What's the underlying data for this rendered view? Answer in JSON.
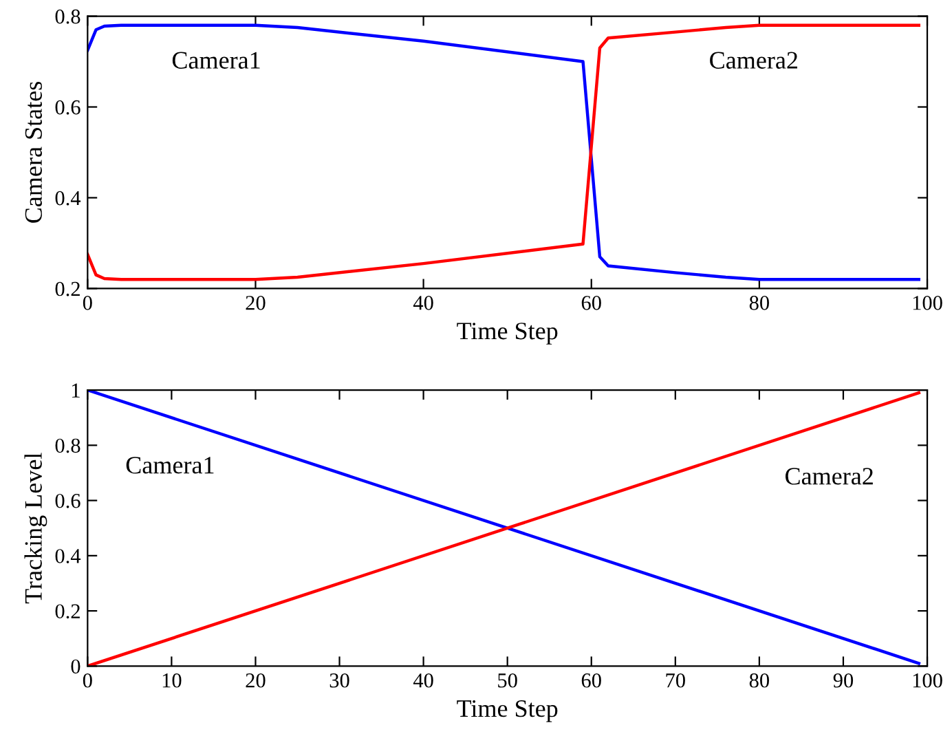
{
  "chart_data": [
    {
      "type": "line",
      "xlabel": "Time Step",
      "ylabel": "Camera States",
      "xlim": [
        0,
        100
      ],
      "xticks": [
        0,
        20,
        40,
        60,
        80,
        100
      ],
      "ylim": [
        0.2,
        0.8
      ],
      "yticks": [
        0.2,
        0.4,
        0.6,
        0.8
      ],
      "grid": false,
      "legend": false,
      "series": [
        {
          "name": "Camera1",
          "color": "#0000ff",
          "x": [
            0,
            1,
            2,
            4,
            20,
            25,
            40,
            59,
            61,
            62,
            70,
            76,
            80,
            99
          ],
          "values": [
            0.725,
            0.77,
            0.778,
            0.78,
            0.78,
            0.775,
            0.745,
            0.7,
            0.27,
            0.25,
            0.235,
            0.225,
            0.22,
            0.22
          ]
        },
        {
          "name": "Camera2",
          "color": "#ff0000",
          "x": [
            0,
            1,
            2,
            4,
            20,
            25,
            40,
            59,
            61,
            62,
            70,
            76,
            80,
            99
          ],
          "values": [
            0.275,
            0.23,
            0.222,
            0.22,
            0.22,
            0.225,
            0.255,
            0.298,
            0.73,
            0.752,
            0.765,
            0.775,
            0.78,
            0.78
          ]
        }
      ]
    },
    {
      "type": "line",
      "xlabel": "Time Step",
      "ylabel": "Tracking Level",
      "xlim": [
        0,
        100
      ],
      "xticks": [
        0,
        10,
        20,
        30,
        40,
        50,
        60,
        70,
        80,
        90,
        100
      ],
      "ylim": [
        0,
        1
      ],
      "yticks": [
        0,
        0.2,
        0.4,
        0.6,
        0.8,
        1
      ],
      "grid": false,
      "legend": false,
      "series": [
        {
          "name": "Camera1",
          "color": "#0000ff",
          "x": [
            0,
            99
          ],
          "values": [
            1,
            0.01
          ]
        },
        {
          "name": "Camera2",
          "color": "#ff0000",
          "x": [
            0,
            99
          ],
          "values": [
            0,
            0.99
          ]
        }
      ]
    }
  ]
}
